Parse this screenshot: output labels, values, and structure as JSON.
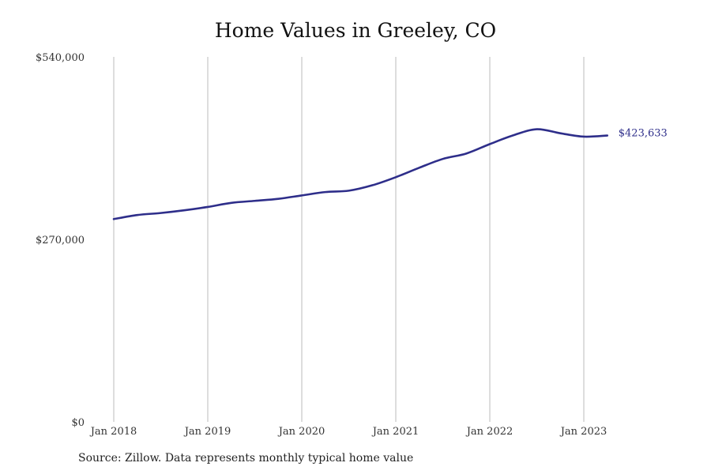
{
  "chart_data": {
    "type": "line",
    "title": "Home Values in Greeley, CO",
    "xlabel": "",
    "ylabel": "",
    "x_ticks": [
      "Jan 2018",
      "Jan 2019",
      "Jan 2020",
      "Jan 2021",
      "Jan 2022",
      "Jan 2023"
    ],
    "y_ticks": [
      "$540,000",
      "$270,000",
      "$0"
    ],
    "ylim": [
      0,
      540000
    ],
    "xlim": [
      "2018-01",
      "2024-01"
    ],
    "grid": "vertical lines at each year",
    "colors": {
      "line": "#2e2e8a",
      "grid": "#bbbbbb"
    },
    "series": [
      {
        "x": [
          "2018-01",
          "2018-04",
          "2018-07",
          "2018-10",
          "2019-01",
          "2019-04",
          "2019-07",
          "2019-10",
          "2020-01",
          "2020-04",
          "2020-07",
          "2020-10",
          "2021-01",
          "2021-04",
          "2021-07",
          "2021-10",
          "2022-01",
          "2022-04",
          "2022-07",
          "2022-10",
          "2023-01",
          "2023-04"
        ],
        "values": [
          300000,
          306000,
          309000,
          313000,
          318000,
          324000,
          327000,
          330000,
          335000,
          340000,
          342000,
          350000,
          362000,
          376000,
          389000,
          397000,
          411000,
          424000,
          433000,
          427000,
          422000,
          423633
        ]
      }
    ],
    "end_label": "$423,633"
  },
  "footer": {
    "source": "Source: Zillow. Data represents monthly typical home value"
  }
}
